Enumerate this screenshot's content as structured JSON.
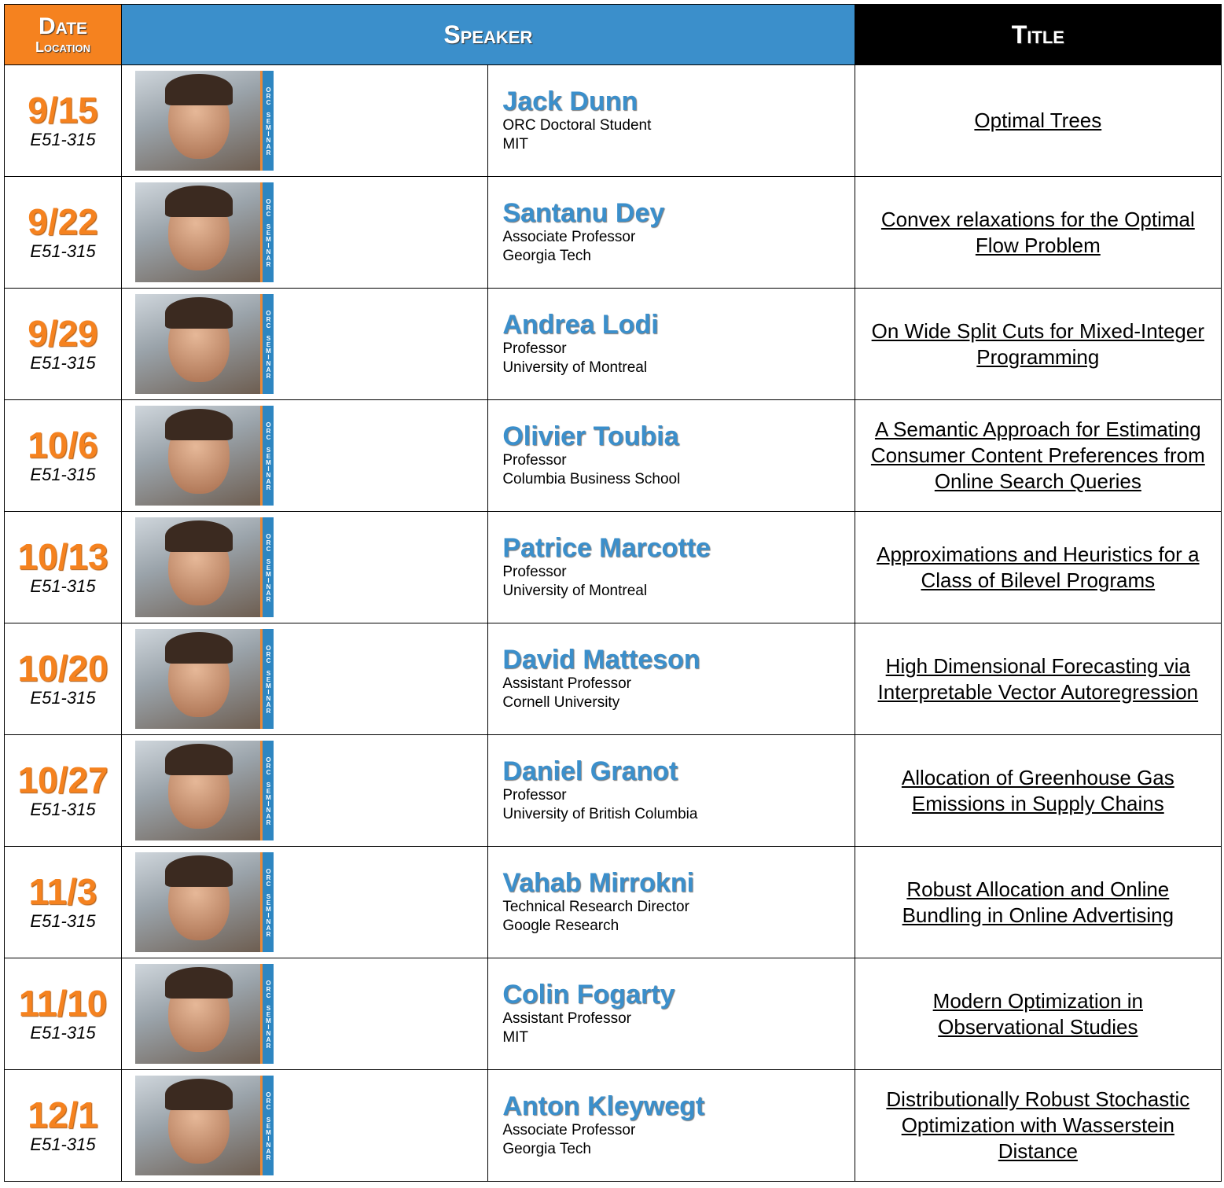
{
  "header": {
    "date": "Date",
    "location": "Location",
    "speaker": "Speaker",
    "title": "Title"
  },
  "photo_badge": "ORC SEMINAR",
  "rows": [
    {
      "date": "9/15",
      "location": "E51-315",
      "name": "Jack Dunn",
      "position": "ORC Doctoral Student",
      "affiliation": "MIT",
      "title": "Optimal Trees"
    },
    {
      "date": "9/22",
      "location": "E51-315",
      "name": "Santanu Dey",
      "position": "Associate Professor",
      "affiliation": "Georgia Tech",
      "title": "Convex relaxations for the Optimal Flow Problem"
    },
    {
      "date": "9/29",
      "location": "E51-315",
      "name": "Andrea Lodi",
      "position": "Professor",
      "affiliation": "University of Montreal",
      "title": "On Wide Split Cuts for Mixed-Integer Programming"
    },
    {
      "date": "10/6",
      "location": "E51-315",
      "name": "Olivier Toubia",
      "position": "Professor",
      "affiliation": "Columbia Business School",
      "title": "A Semantic Approach for Estimating Consumer Content Preferences from Online Search Queries"
    },
    {
      "date": "10/13",
      "location": "E51-315",
      "name": "Patrice Marcotte",
      "position": "Professor",
      "affiliation": "University of Montreal",
      "title": "Approximations and Heuristics for a Class of Bilevel Programs"
    },
    {
      "date": "10/20",
      "location": "E51-315",
      "name": "David Matteson",
      "position": "Assistant Professor",
      "affiliation": "Cornell University",
      "title": "High Dimensional Forecasting via Interpretable Vector Autoregression"
    },
    {
      "date": "10/27",
      "location": "E51-315",
      "name": "Daniel Granot",
      "position": "Professor",
      "affiliation": "University of British Columbia",
      "title": "Allocation of Greenhouse Gas Emissions in Supply Chains"
    },
    {
      "date": "11/3",
      "location": "E51-315",
      "name": "Vahab Mirrokni",
      "position": "Technical Research Director",
      "affiliation": "Google Research",
      "title": "Robust Allocation and Online Bundling in Online Advertising"
    },
    {
      "date": "11/10",
      "location": "E51-315",
      "name": "Colin Fogarty",
      "position": "Assistant Professor",
      "affiliation": "MIT",
      "title": "Modern Optimization in Observational Studies"
    },
    {
      "date": "12/1",
      "location": "E51-315",
      "name": "Anton Kleywegt",
      "position": "Associate Professor",
      "affiliation": "Georgia Tech",
      "title": "Distributionally Robust Stochastic Optimization with Wasserstein Distance"
    }
  ]
}
